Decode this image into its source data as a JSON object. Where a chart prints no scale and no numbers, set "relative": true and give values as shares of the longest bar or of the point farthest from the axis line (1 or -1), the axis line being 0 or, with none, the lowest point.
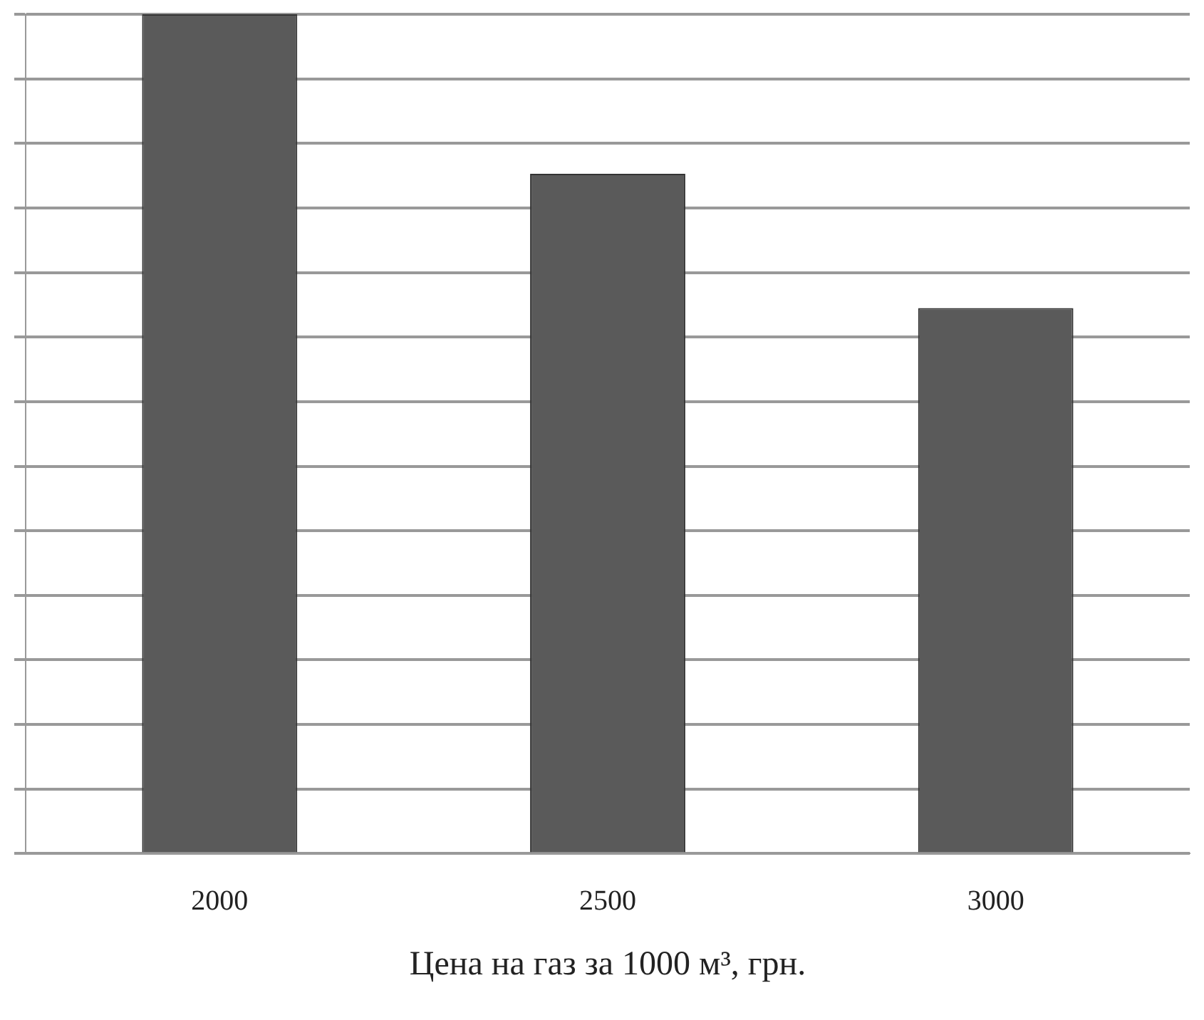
{
  "chart_data": {
    "type": "bar",
    "xlabel": "Цена на газ за 1000 м³, грн.",
    "categories": [
      "2000",
      "2500",
      "3000"
    ],
    "values": [
      1,
      0.81,
      0.65
    ],
    "color": "#5a5a5a",
    "relative": true,
    "grid": "y"
  }
}
